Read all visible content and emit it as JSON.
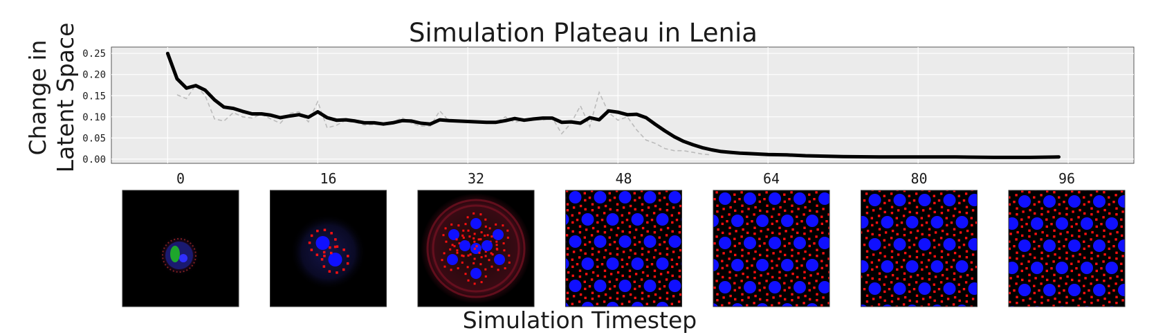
{
  "chart_data": {
    "type": "line",
    "title": "Simulation Plateau in Lenia",
    "ylabel_line1": "Change in",
    "ylabel_line2": "Latent Space",
    "xlabel": "Simulation Timestep",
    "xlim": [
      -6,
      103
    ],
    "ylim": [
      -0.01,
      0.265
    ],
    "yticks": [
      "0.00",
      "0.05",
      "0.10",
      "0.15",
      "0.20",
      "0.25"
    ],
    "ytick_values": [
      0.0,
      0.05,
      0.1,
      0.15,
      0.2,
      0.25
    ],
    "xgrid": [
      0,
      16,
      32,
      48,
      64,
      80,
      96
    ],
    "grid": true,
    "colors": {
      "background": "#ebebeb",
      "grid": "#ffffff",
      "smoothed": "#000000",
      "raw": "#bbbbbb"
    },
    "series": [
      {
        "name": "smoothed",
        "style": "solid",
        "x": [
          0,
          1,
          2,
          3,
          4,
          5,
          6,
          7,
          8,
          9,
          10,
          11,
          12,
          13,
          14,
          15,
          16,
          17,
          18,
          19,
          20,
          21,
          22,
          23,
          24,
          25,
          26,
          27,
          28,
          29,
          30,
          31,
          32,
          33,
          34,
          35,
          36,
          37,
          38,
          39,
          40,
          41,
          42,
          43,
          44,
          45,
          46,
          47,
          48,
          49,
          50,
          51,
          52,
          53,
          54,
          55,
          56,
          57,
          58,
          59,
          60,
          61,
          62,
          64,
          66,
          68,
          72,
          76,
          80,
          84,
          88,
          92,
          95
        ],
        "y": [
          0.25,
          0.19,
          0.168,
          0.174,
          0.163,
          0.14,
          0.123,
          0.12,
          0.113,
          0.107,
          0.107,
          0.104,
          0.098,
          0.102,
          0.105,
          0.099,
          0.112,
          0.098,
          0.092,
          0.093,
          0.09,
          0.086,
          0.086,
          0.083,
          0.086,
          0.091,
          0.09,
          0.085,
          0.083,
          0.093,
          0.091,
          0.09,
          0.089,
          0.088,
          0.087,
          0.087,
          0.091,
          0.096,
          0.092,
          0.095,
          0.097,
          0.097,
          0.087,
          0.088,
          0.085,
          0.098,
          0.093,
          0.114,
          0.111,
          0.105,
          0.106,
          0.098,
          0.082,
          0.067,
          0.053,
          0.042,
          0.034,
          0.027,
          0.022,
          0.018,
          0.016,
          0.014,
          0.013,
          0.011,
          0.01,
          0.008,
          0.006,
          0.005,
          0.005,
          0.005,
          0.004,
          0.004,
          0.005
        ]
      },
      {
        "name": "raw",
        "style": "dashed",
        "x": [
          1,
          2,
          3,
          4,
          5,
          6,
          7,
          8,
          9,
          10,
          11,
          12,
          13,
          14,
          15,
          16,
          17,
          18,
          19,
          20,
          21,
          22,
          23,
          24,
          25,
          26,
          27,
          28,
          29,
          30,
          31,
          32,
          33,
          34,
          35,
          36,
          37,
          38,
          39,
          40,
          41,
          42,
          43,
          44,
          45,
          46,
          47,
          48,
          49,
          50,
          51,
          52,
          53,
          54,
          55,
          56,
          57,
          58
        ],
        "y": [
          0.152,
          0.143,
          0.175,
          0.15,
          0.095,
          0.09,
          0.11,
          0.1,
          0.097,
          0.106,
          0.095,
          0.085,
          0.108,
          0.112,
          0.088,
          0.136,
          0.074,
          0.08,
          0.092,
          0.087,
          0.08,
          0.082,
          0.085,
          0.087,
          0.098,
          0.085,
          0.078,
          0.078,
          0.114,
          0.09,
          0.088,
          0.088,
          0.086,
          0.085,
          0.087,
          0.1,
          0.087,
          0.093,
          0.096,
          0.092,
          0.098,
          0.06,
          0.085,
          0.126,
          0.077,
          0.158,
          0.11,
          0.092,
          0.1,
          0.069,
          0.045,
          0.037,
          0.025,
          0.02,
          0.02,
          0.016,
          0.012,
          0.01
        ]
      }
    ],
    "frames": [
      {
        "label": "0",
        "timestep": 0,
        "kind": "seed"
      },
      {
        "label": "16",
        "timestep": 16,
        "kind": "pair"
      },
      {
        "label": "32",
        "timestep": 32,
        "kind": "flower"
      },
      {
        "label": "48",
        "timestep": 48,
        "kind": "lattice"
      },
      {
        "label": "64",
        "timestep": 64,
        "kind": "lattice"
      },
      {
        "label": "80",
        "timestep": 80,
        "kind": "lattice"
      },
      {
        "label": "96",
        "timestep": 96,
        "kind": "lattice"
      }
    ]
  }
}
